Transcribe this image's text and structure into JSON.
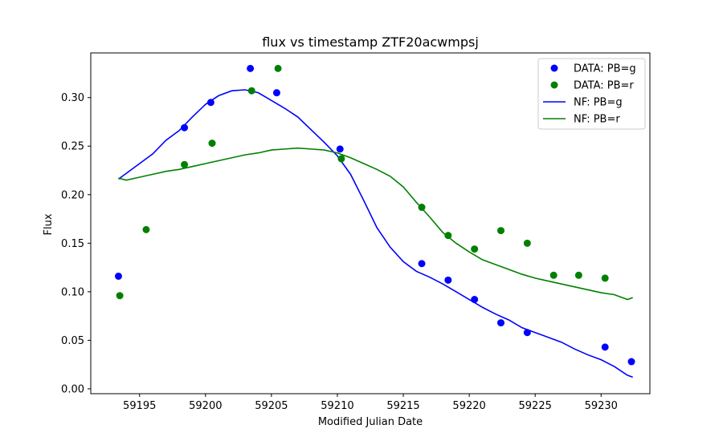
{
  "chart_data": {
    "type": "scatter",
    "title": "flux vs timestamp ZTF20acwmpsj",
    "xlabel": "Modified Julian Date",
    "ylabel": "Flux",
    "xlim": [
      59191.3,
      59233.7
    ],
    "ylim": [
      -0.005,
      0.346
    ],
    "xticks": [
      59195,
      59200,
      59205,
      59210,
      59215,
      59220,
      59225,
      59230
    ],
    "yticks": [
      0.0,
      0.05,
      0.1,
      0.15,
      0.2,
      0.25,
      0.3
    ],
    "ytick_labels": [
      "0.00",
      "0.05",
      "0.10",
      "0.15",
      "0.20",
      "0.25",
      "0.30"
    ],
    "grid": false,
    "legend_position": "top-right",
    "colors": {
      "g": "#0000ff",
      "r": "#008000"
    },
    "series": [
      {
        "name": "DATA: PB=g",
        "kind": "scatter",
        "color": "#0000ff",
        "x": [
          59193.4,
          59198.4,
          59200.4,
          59203.4,
          59205.4,
          59210.2,
          59216.4,
          59218.4,
          59220.4,
          59222.4,
          59224.4,
          59230.3,
          59232.3
        ],
        "y": [
          0.116,
          0.269,
          0.295,
          0.33,
          0.305,
          0.247,
          0.129,
          0.112,
          0.092,
          0.068,
          0.058,
          0.043,
          0.028
        ]
      },
      {
        "name": "DATA: PB=r",
        "kind": "scatter",
        "color": "#008000",
        "x": [
          59193.5,
          59195.5,
          59198.4,
          59200.5,
          59203.5,
          59205.5,
          59210.3,
          59216.4,
          59218.4,
          59220.4,
          59222.4,
          59224.4,
          59226.4,
          59228.3,
          59230.3
        ],
        "y": [
          0.096,
          0.164,
          0.231,
          0.253,
          0.307,
          0.33,
          0.237,
          0.187,
          0.158,
          0.144,
          0.163,
          0.15,
          0.117,
          0.117,
          0.114
        ]
      },
      {
        "name": "NF: PB=g",
        "kind": "line",
        "color": "#0000ff",
        "x": [
          59193.4,
          59194,
          59195,
          59196,
          59197,
          59198,
          59199,
          59200,
          59201,
          59202,
          59203,
          59204,
          59205,
          59206,
          59207,
          59208,
          59209,
          59210,
          59211,
          59212,
          59213,
          59214,
          59215,
          59216,
          59217,
          59218,
          59219,
          59220,
          59221,
          59222,
          59223,
          59224,
          59225,
          59226,
          59227,
          59228,
          59229,
          59230,
          59231,
          59232,
          59232.4
        ],
        "y": [
          0.216,
          0.222,
          0.232,
          0.242,
          0.256,
          0.266,
          0.28,
          0.293,
          0.302,
          0.307,
          0.308,
          0.305,
          0.297,
          0.289,
          0.28,
          0.267,
          0.254,
          0.24,
          0.221,
          0.194,
          0.166,
          0.146,
          0.131,
          0.121,
          0.115,
          0.108,
          0.1,
          0.092,
          0.084,
          0.077,
          0.071,
          0.063,
          0.058,
          0.053,
          0.048,
          0.041,
          0.035,
          0.03,
          0.023,
          0.014,
          0.012
        ]
      },
      {
        "name": "NF: PB=r",
        "kind": "line",
        "color": "#008000",
        "x": [
          59193.4,
          59194,
          59195,
          59196,
          59197,
          59198,
          59199,
          59200,
          59201,
          59202,
          59203,
          59204,
          59205,
          59206,
          59207,
          59208,
          59209,
          59210,
          59211,
          59212,
          59213,
          59214,
          59215,
          59216,
          59217,
          59218,
          59219,
          59220,
          59221,
          59222,
          59223,
          59224,
          59225,
          59226,
          59227,
          59228,
          59229,
          59230,
          59231,
          59232,
          59232.4
        ],
        "y": [
          0.217,
          0.215,
          0.218,
          0.221,
          0.224,
          0.226,
          0.229,
          0.232,
          0.235,
          0.238,
          0.241,
          0.243,
          0.246,
          0.247,
          0.248,
          0.247,
          0.246,
          0.243,
          0.238,
          0.232,
          0.226,
          0.219,
          0.208,
          0.192,
          0.177,
          0.161,
          0.15,
          0.141,
          0.133,
          0.128,
          0.123,
          0.118,
          0.114,
          0.111,
          0.108,
          0.105,
          0.102,
          0.099,
          0.097,
          0.092,
          0.094
        ]
      }
    ]
  }
}
